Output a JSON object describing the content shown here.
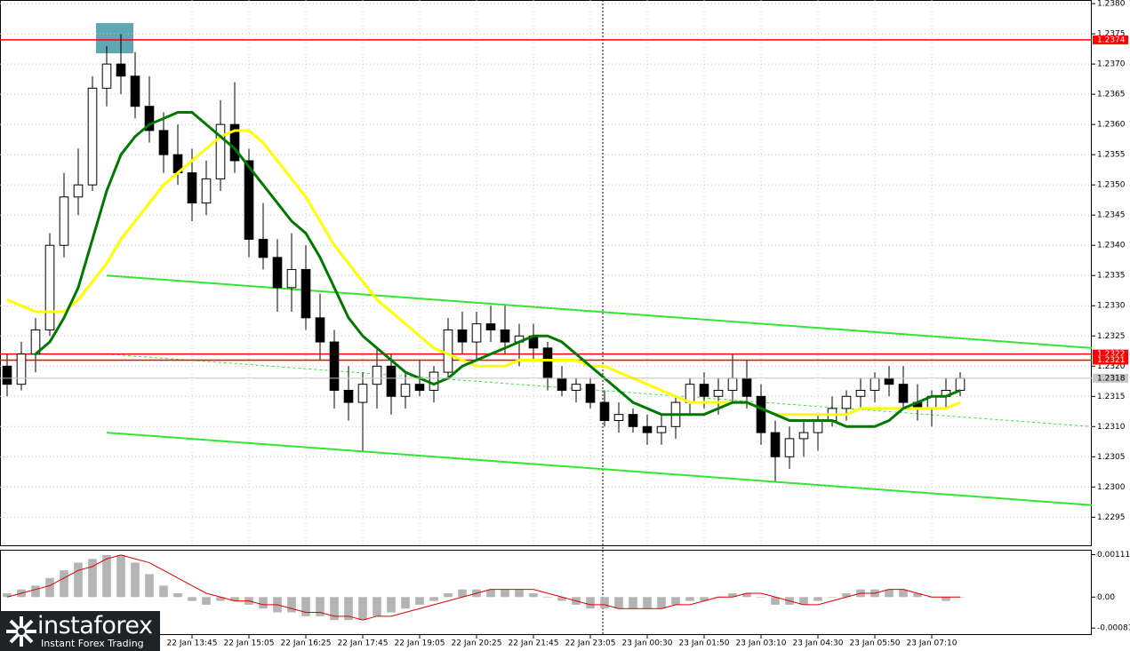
{
  "chart_data": {
    "type": "candlestick",
    "open": [
      1.232,
      1.2317,
      1.2322,
      1.2326,
      1.234,
      1.2348,
      1.235,
      1.2366,
      1.237,
      1.2368,
      1.2363,
      1.2359,
      1.2355,
      1.2352,
      1.2347,
      1.2351,
      1.236,
      1.2354,
      1.2341,
      1.2338,
      1.2333,
      1.2336,
      1.2328,
      1.2324,
      1.2316,
      1.2314,
      1.2317,
      1.232,
      1.2315,
      1.2317,
      1.2316,
      1.2319,
      1.2326,
      1.2324,
      1.2327,
      1.2326,
      1.2324,
      1.2325,
      1.2323,
      1.2318,
      1.2316,
      1.2317,
      1.2314,
      1.2311,
      1.2312,
      1.231,
      1.2309,
      1.231,
      1.2314,
      1.2317,
      1.2315,
      1.2316,
      1.2318,
      1.2315,
      1.2309,
      1.2305,
      1.2308,
      1.2309,
      1.2311,
      1.2313,
      1.2315,
      1.2316,
      1.2318,
      1.2317,
      1.2314,
      1.2313,
      1.2315,
      1.2316
    ],
    "high": [
      1.2322,
      1.2324,
      1.2328,
      1.2342,
      1.2352,
      1.2356,
      1.2368,
      1.2373,
      1.2375,
      1.2372,
      1.2368,
      1.2362,
      1.236,
      1.2356,
      1.2354,
      1.2364,
      1.2367,
      1.2356,
      1.2347,
      1.2341,
      1.2342,
      1.234,
      1.2332,
      1.2326,
      1.232,
      1.2319,
      1.2323,
      1.2322,
      1.2319,
      1.2321,
      1.232,
      1.2328,
      1.2329,
      1.2329,
      1.233,
      1.233,
      1.2327,
      1.2327,
      1.2324,
      1.232,
      1.2318,
      1.2318,
      1.2316,
      1.2314,
      1.2313,
      1.2312,
      1.2312,
      1.2315,
      1.2318,
      1.2319,
      1.2318,
      1.2322,
      1.2321,
      1.2317,
      1.2311,
      1.231,
      1.2311,
      1.2312,
      1.2315,
      1.2316,
      1.2318,
      1.2319,
      1.232,
      1.232,
      1.2317,
      1.2316,
      1.2318,
      1.2319
    ],
    "low": [
      1.2315,
      1.2316,
      1.2319,
      1.2325,
      1.2338,
      1.2345,
      1.2349,
      1.2363,
      1.2365,
      1.2361,
      1.2357,
      1.2352,
      1.235,
      1.2344,
      1.2345,
      1.2349,
      1.2352,
      1.2338,
      1.2336,
      1.2329,
      1.2329,
      1.2326,
      1.2321,
      1.2313,
      1.2311,
      1.2306,
      1.2313,
      1.2312,
      1.2313,
      1.2315,
      1.2314,
      1.2318,
      1.2322,
      1.2321,
      1.2324,
      1.2322,
      1.232,
      1.2321,
      1.2316,
      1.2315,
      1.2314,
      1.2313,
      1.231,
      1.2309,
      1.2309,
      1.2307,
      1.2307,
      1.2308,
      1.2312,
      1.2313,
      1.2312,
      1.2314,
      1.2313,
      1.2307,
      1.2301,
      1.2303,
      1.2305,
      1.2306,
      1.231,
      1.2311,
      1.2313,
      1.2314,
      1.2315,
      1.2313,
      1.2311,
      1.231,
      1.2313,
      1.2315
    ],
    "close": [
      1.2317,
      1.2322,
      1.2326,
      1.234,
      1.2348,
      1.235,
      1.2366,
      1.237,
      1.2368,
      1.2363,
      1.2359,
      1.2355,
      1.2352,
      1.2347,
      1.2351,
      1.236,
      1.2354,
      1.2341,
      1.2338,
      1.2333,
      1.2336,
      1.2328,
      1.2324,
      1.2316,
      1.2314,
      1.2317,
      1.232,
      1.2315,
      1.2317,
      1.2316,
      1.2319,
      1.2326,
      1.2324,
      1.2327,
      1.2326,
      1.2324,
      1.2325,
      1.2323,
      1.2318,
      1.2316,
      1.2317,
      1.2314,
      1.2311,
      1.2312,
      1.231,
      1.2309,
      1.231,
      1.2314,
      1.2317,
      1.2315,
      1.2316,
      1.2318,
      1.2315,
      1.2309,
      1.2305,
      1.2308,
      1.2309,
      1.2311,
      1.2313,
      1.2315,
      1.2316,
      1.2318,
      1.2317,
      1.2314,
      1.2313,
      1.2315,
      1.2316,
      1.2318
    ],
    "series": [
      {
        "color": "#ffff00",
        "values": [
          1.2331,
          1.233,
          1.2329,
          1.2329,
          1.2329,
          1.2331,
          1.2334,
          1.2337,
          1.2341,
          1.2344,
          1.2347,
          1.235,
          1.2352,
          1.2354,
          1.2356,
          1.2358,
          1.2359,
          1.2359,
          1.2357,
          1.2354,
          1.2351,
          1.2348,
          1.2344,
          1.234,
          1.2337,
          1.2334,
          1.2331,
          1.2329,
          1.2327,
          1.2325,
          1.2323,
          1.2322,
          1.2321,
          1.232,
          1.232,
          1.232,
          1.2321,
          1.2321,
          1.2321,
          1.2321,
          1.2321,
          1.232,
          1.232,
          1.2319,
          1.2318,
          1.2317,
          1.2316,
          1.2315,
          1.2314,
          1.2314,
          1.2314,
          1.2314,
          1.2314,
          1.2313,
          1.2312,
          1.2312,
          1.2312,
          1.2312,
          1.2312,
          1.2312,
          1.2313,
          1.2313,
          1.2313,
          1.2313,
          1.2313,
          1.2313,
          1.2313,
          1.2314
        ]
      },
      {
        "color": "#007800",
        "values": [
          null,
          null,
          1.2322,
          1.2324,
          1.2328,
          1.2333,
          1.2341,
          1.2349,
          1.2355,
          1.2358,
          1.236,
          1.2361,
          1.2362,
          1.2362,
          1.236,
          1.2358,
          1.2356,
          1.2353,
          1.235,
          1.2347,
          1.2344,
          1.2342,
          1.2338,
          1.2333,
          1.2328,
          1.2325,
          1.2323,
          1.2321,
          1.2319,
          1.2318,
          1.2317,
          1.2318,
          1.232,
          1.2321,
          1.2322,
          1.2323,
          1.2324,
          1.2325,
          1.2325,
          1.2324,
          1.2322,
          1.232,
          1.2318,
          1.2316,
          1.2314,
          1.2313,
          1.2312,
          1.2312,
          1.2312,
          1.2312,
          1.2313,
          1.2314,
          1.2314,
          1.2313,
          1.2312,
          1.2311,
          1.2311,
          1.2311,
          1.2311,
          1.231,
          1.231,
          1.231,
          1.2311,
          1.2313,
          1.2314,
          1.2315,
          1.2315,
          1.2316
        ]
      }
    ],
    "xlim": [
      -0.5,
      76.25
    ],
    "ylim": [
      1.22902,
      1.23806
    ],
    "yticks": [
      {
        "value": 1.238,
        "label": "1.2380"
      },
      1.2375,
      {
        "value": 1.237,
        "label": "1.2370"
      },
      1.2365,
      {
        "value": 1.236,
        "label": "1.2360"
      },
      1.2355,
      {
        "value": 1.235,
        "label": "1.2350"
      },
      1.2345,
      {
        "value": 1.234,
        "label": "1.2340"
      },
      1.2335,
      {
        "value": 1.233,
        "label": "1.2330"
      },
      1.2325,
      {
        "value": 1.232,
        "label": "1.2320"
      },
      1.2315,
      {
        "value": 1.231,
        "label": "1.2310"
      },
      1.2305,
      {
        "value": 1.23,
        "label": "1.2300"
      },
      1.2295
    ],
    "xticks": [
      {
        "value": 13,
        "label": "22 Jan 13:45"
      },
      {
        "value": 17,
        "label": "22 Jan 15:05"
      },
      {
        "value": 21,
        "label": "22 Jan 16:25"
      },
      {
        "value": 25,
        "label": "22 Jan 17:45"
      },
      {
        "value": 29,
        "label": "22 Jan 19:05"
      },
      {
        "value": 33,
        "label": "22 Jan 20:25"
      },
      {
        "value": 37,
        "label": "22 Jan 21:45"
      },
      {
        "value": 41,
        "label": "22 Jan 23:05"
      },
      {
        "value": 45,
        "label": "23 Jan 00:30"
      },
      {
        "value": 49,
        "label": "23 Jan 01:50"
      },
      {
        "value": 53,
        "label": "23 Jan 03:10"
      },
      {
        "value": 57,
        "label": "23 Jan 04:30"
      },
      {
        "value": 61,
        "label": "23 Jan 05:50"
      },
      {
        "value": 65,
        "label": "23 Jan 07:10"
      }
    ],
    "grid": true,
    "levels": [
      {
        "value": 1.2374,
        "label": "1.2374",
        "color": "#ff0000"
      },
      {
        "value": 1.2322,
        "label": "1.2322",
        "color": "#ff0000"
      },
      {
        "value": 1.2321,
        "label": "1.2321",
        "color": "#ff0000"
      }
    ],
    "last_price": {
      "value": 1.2318,
      "label": "1.2318"
    },
    "trendlines": [
      {
        "x": [
          7,
          76.25
        ],
        "y": [
          1.2335,
          1.2323
        ],
        "color": "#33e633"
      },
      {
        "x": [
          7,
          76.25
        ],
        "y": [
          1.2309,
          1.2297
        ],
        "color": "#33e633"
      },
      {
        "x": [
          7,
          76.25
        ],
        "y": [
          1.2322,
          1.231
        ],
        "color": "#33e633",
        "dashed": true
      }
    ],
    "vlines": [
      41.875
    ],
    "macd": {
      "histogram": [
        0.0001,
        0.0002,
        0.0003,
        0.0005,
        0.0007,
        0.0009,
        0.001,
        0.0011,
        0.0011,
        0.0009,
        0.0006,
        0.0003,
        0.0001,
        -0.0001,
        -0.0002,
        -0.0001,
        -0.0001,
        -0.0002,
        -0.0003,
        -0.0004,
        -0.0004,
        -0.0005,
        -0.0005,
        -0.0006,
        -0.0006,
        -0.0006,
        -0.0005,
        -0.0004,
        -0.0003,
        -0.0002,
        -0.0001,
        0.0001,
        0.0002,
        0.0002,
        0.0002,
        0.0002,
        0.0002,
        0.0001,
        0,
        -0.0001,
        -0.0002,
        -0.0003,
        -0.0003,
        -0.0003,
        -0.0003,
        -0.0003,
        -0.0003,
        -0.0002,
        -0.0001,
        -0.0001,
        0,
        0.0001,
        0.0001,
        0,
        -0.0002,
        -0.0002,
        -0.0002,
        -0.0001,
        0,
        0.0001,
        0.0002,
        0.0002,
        0.0002,
        0.0002,
        0.0001,
        0,
        -0.0001,
        0
      ],
      "signal": [
        0,
        0.0001,
        0.0002,
        0.0003,
        0.0005,
        0.0007,
        0.0008,
        0.001,
        0.0011,
        0.001,
        0.0009,
        0.0007,
        0.0005,
        0.0003,
        0.0001,
        0,
        -0.0001,
        -0.0001,
        -0.0002,
        -0.0002,
        -0.0003,
        -0.0004,
        -0.0004,
        -0.0005,
        -0.0005,
        -0.0006,
        -0.0005,
        -0.0005,
        -0.0004,
        -0.0003,
        -0.0002,
        -0.0001,
        0,
        0.0001,
        0.0002,
        0.0002,
        0.0002,
        0.0002,
        0.0001,
        0,
        -0.0001,
        -0.0002,
        -0.0002,
        -0.0003,
        -0.0003,
        -0.0003,
        -0.0003,
        -0.0002,
        -0.0002,
        -0.0001,
        0,
        0,
        0.0001,
        0.0001,
        0,
        -0.0001,
        -0.0002,
        -0.0002,
        -0.0001,
        0,
        0.0001,
        0.0001,
        0.0002,
        0.0002,
        0.0001,
        0,
        0,
        0
      ],
      "histogram_color": "#b4b4b4",
      "signal_color": "#e00000",
      "ylim": [
        -0.000992,
        0.001238
      ],
      "yticks": [
        0.00111,
        {
          "value": 0,
          "label": "0.00"
        },
        -0.00081
      ]
    }
  },
  "logo": {
    "name": "instaforex",
    "tagline": "Instant Forex Trading"
  }
}
